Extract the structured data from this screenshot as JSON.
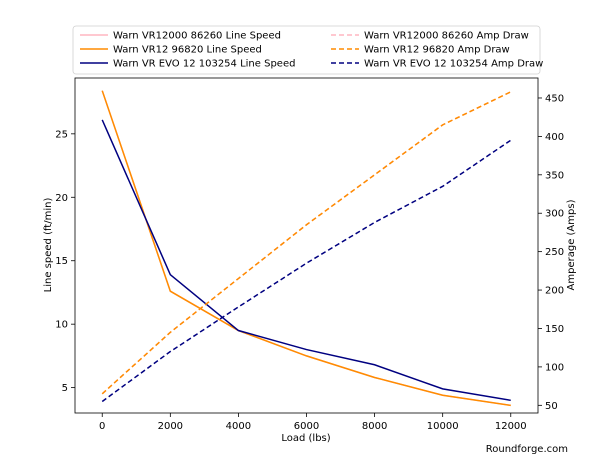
{
  "chart_data": {
    "type": "line",
    "xlabel": "Load (lbs)",
    "ylabel": "Line speed (ft/min)",
    "y2label": "Amperage (Amps)",
    "xlim": [
      -800,
      12800
    ],
    "ylim": [
      3.0,
      29.4
    ],
    "y2lim": [
      40,
      476
    ],
    "xticks": [
      0,
      2000,
      4000,
      6000,
      8000,
      10000,
      12000
    ],
    "yticks": [
      5,
      10,
      15,
      20,
      25
    ],
    "y2ticks": [
      50,
      100,
      150,
      200,
      250,
      300,
      350,
      400,
      450
    ],
    "x": [
      0,
      2000,
      4000,
      6000,
      8000,
      10000,
      12000
    ],
    "grid": false,
    "legend_position": "top",
    "colors": {
      "vr12000": "#ffb6c1",
      "vr12": "#ff8c00",
      "evo12": "#000080"
    },
    "series": [
      {
        "name": "Warn VR12000 86260 Line Speed",
        "axis": "left",
        "style": "solid",
        "color_key": "vr12000",
        "values": [
          28.4,
          12.6,
          9.5,
          7.5,
          5.8,
          4.4,
          3.6
        ]
      },
      {
        "name": "Warn VR12 96820 Line Speed",
        "axis": "left",
        "style": "solid",
        "color_key": "vr12",
        "values": [
          28.4,
          12.6,
          9.5,
          7.5,
          5.8,
          4.4,
          3.6
        ]
      },
      {
        "name": "Warn VR EVO 12 103254 Line Speed",
        "axis": "left",
        "style": "solid",
        "color_key": "evo12",
        "values": [
          26.1,
          13.9,
          9.5,
          8.0,
          6.8,
          4.9,
          4.0
        ]
      },
      {
        "name": "Warn VR12000 86260 Amp Draw",
        "axis": "right",
        "style": "dashed",
        "color_key": "vr12000",
        "values": [
          65,
          145,
          215,
          285,
          350,
          415,
          458
        ]
      },
      {
        "name": "Warn VR12 96820 Amp Draw",
        "axis": "right",
        "style": "dashed",
        "color_key": "vr12",
        "values": [
          65,
          145,
          215,
          285,
          350,
          415,
          458
        ]
      },
      {
        "name": "Warn VR EVO 12 103254 Amp Draw",
        "axis": "right",
        "style": "dashed",
        "color_key": "evo12",
        "values": [
          55,
          120,
          178,
          235,
          288,
          335,
          395
        ]
      }
    ]
  },
  "watermark": "Roundforge.com"
}
